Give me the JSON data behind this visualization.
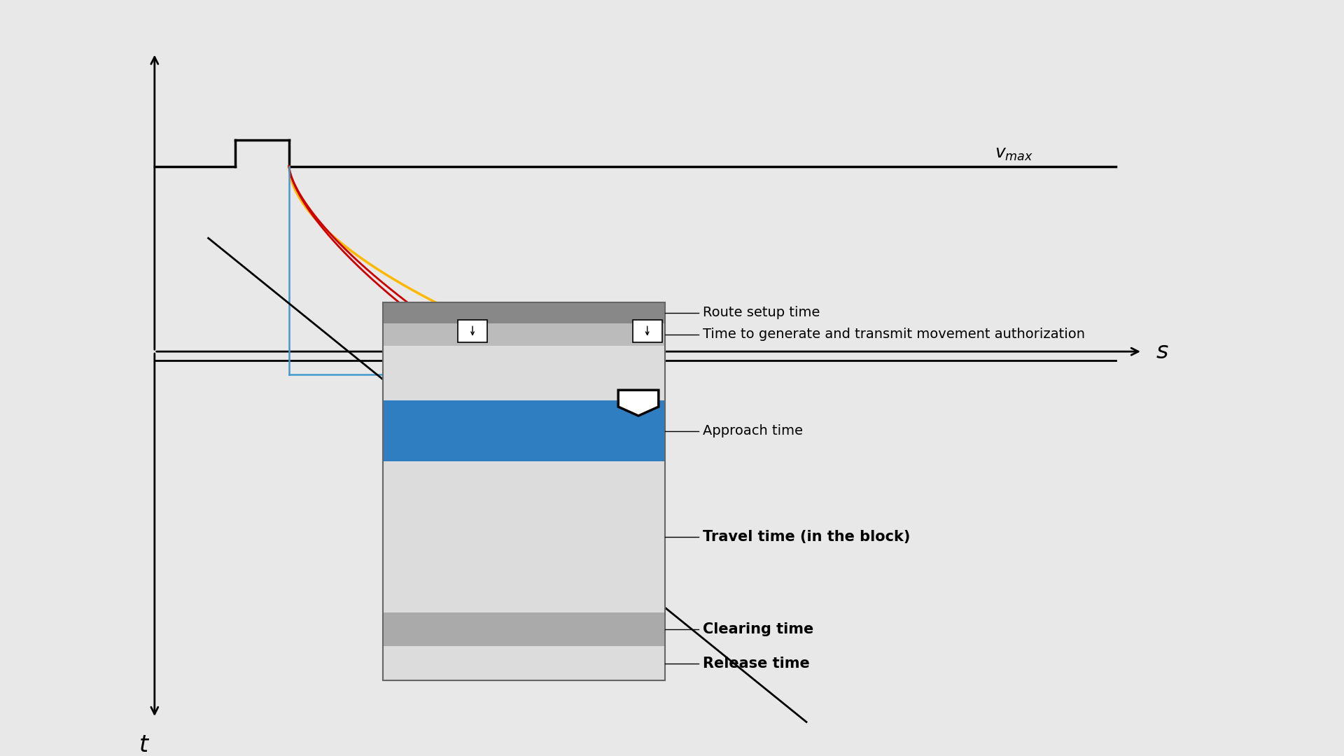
{
  "background_color": "#e8e8e8",
  "inner_bg": "#ffffff",
  "blue_color": "#2E7EC1",
  "yellow_color": "#FFB800",
  "red_color": "#CC0000",
  "labels": [
    "Route setup time",
    "Time to generate and transmit movement authorization",
    "Approach time",
    "Travel time (in the block)",
    "Clearing time",
    "Release time"
  ],
  "label_bold": [
    false,
    false,
    false,
    true,
    true,
    true
  ]
}
